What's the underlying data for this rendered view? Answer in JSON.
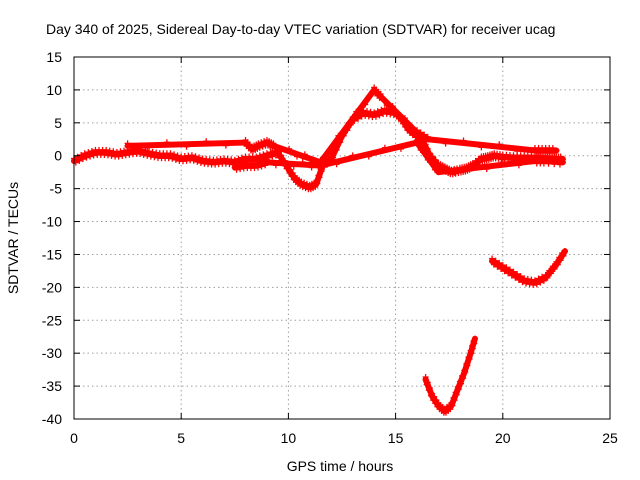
{
  "chart_data": {
    "type": "scatter",
    "title": "Day 340 of 2025, Sidereal Day-to-day VTEC variation (SDTVAR) for receiver ucag",
    "xlabel": "GPS time / hours",
    "ylabel": "SDTVAR / TECUs",
    "xlim": [
      0,
      25
    ],
    "ylim": [
      -40,
      15
    ],
    "xticks": [
      0,
      5,
      10,
      15,
      20,
      25
    ],
    "yticks": [
      15,
      10,
      5,
      0,
      -5,
      -10,
      -15,
      -20,
      -25,
      -30,
      -35,
      -40
    ],
    "grid": true,
    "marker": "+",
    "color": "#ff0000",
    "series": [
      {
        "name": "main",
        "x": [
          0.0,
          0.5,
          1.0,
          1.5,
          2.0,
          2.5,
          3.0,
          3.5,
          4.0,
          4.5,
          5.0,
          5.5,
          6.0,
          6.5,
          7.0,
          7.5,
          8.0,
          8.5,
          9.0,
          9.5,
          10.0,
          10.3,
          10.6,
          11.0,
          11.3,
          11.6,
          12.0,
          12.5,
          13.0,
          13.5,
          14.0,
          14.5,
          15.0,
          15.3,
          15.6,
          16.0,
          16.3,
          16.6,
          17.0,
          17.3,
          17.6,
          18.0,
          18.3,
          18.6,
          19.0,
          19.3,
          19.6,
          20.0,
          20.5,
          21.0,
          21.5,
          22.0,
          22.5,
          22.8
        ],
        "y": [
          -0.8,
          0.0,
          0.5,
          0.5,
          0.2,
          0.5,
          0.7,
          0.3,
          0.0,
          0.0,
          -0.5,
          -0.3,
          -0.8,
          -1.0,
          -0.8,
          -1.0,
          -0.5,
          -0.5,
          0.0,
          0.5,
          -2.0,
          -3.5,
          -4.3,
          -4.8,
          -4.3,
          -1.5,
          -0.5,
          3.0,
          5.5,
          6.5,
          6.2,
          6.8,
          6.5,
          5.5,
          4.0,
          3.0,
          2.0,
          0.0,
          -1.5,
          -2.0,
          -2.5,
          -2.2,
          -2.0,
          -1.5,
          -0.5,
          -0.3,
          0.0,
          -0.2,
          -0.3,
          -0.3,
          -0.3,
          -0.4,
          -0.5,
          -0.5
        ]
      },
      {
        "name": "upper-scatter",
        "x": [
          2.5,
          8.0,
          8.3,
          8.6,
          9.0,
          9.3,
          11.5,
          14.0,
          14.3,
          16.0,
          16.5,
          21.5,
          22.0,
          22.5
        ],
        "y": [
          1.5,
          2.0,
          1.0,
          1.5,
          2.0,
          1.5,
          -1.0,
          10.0,
          9.0,
          3.5,
          2.5,
          0.8,
          0.8,
          0.8
        ]
      },
      {
        "name": "lower-scatter",
        "x": [
          7.5,
          8.0,
          8.5,
          9.0,
          11.5,
          16.0,
          17.0,
          21.5,
          22.0,
          22.8
        ],
        "y": [
          -1.8,
          -1.5,
          -1.5,
          -1.0,
          -1.5,
          2.0,
          -2.5,
          -0.8,
          -0.8,
          -1.0
        ]
      },
      {
        "name": "arc-bottom",
        "x": [
          16.4,
          16.7,
          17.0,
          17.3,
          17.6,
          17.9,
          18.2,
          18.5,
          18.7
        ],
        "y": [
          -34.0,
          -36.5,
          -38.0,
          -38.8,
          -38.0,
          -35.5,
          -33.0,
          -30.0,
          -27.8
        ]
      },
      {
        "name": "arc-right",
        "x": [
          19.5,
          20.0,
          20.5,
          21.0,
          21.5,
          22.0,
          22.5,
          22.9
        ],
        "y": [
          -16.0,
          -17.0,
          -18.0,
          -19.0,
          -19.3,
          -18.5,
          -16.5,
          -14.5
        ]
      }
    ]
  }
}
